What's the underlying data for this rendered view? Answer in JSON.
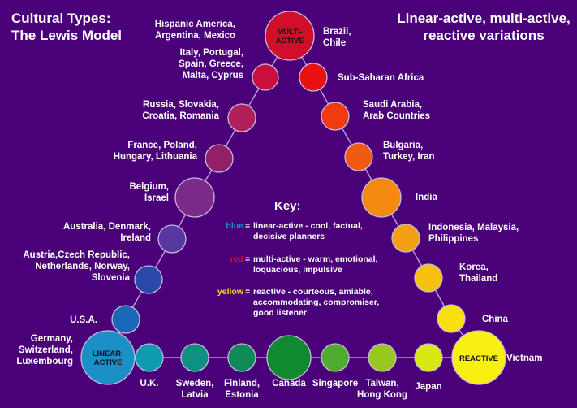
{
  "title_left": [
    "Cultural Types:",
    "The Lewis Model"
  ],
  "title_right": [
    "Linear-active, multi-active,",
    "reactive variations"
  ],
  "key": {
    "heading": "Key:",
    "entries": [
      {
        "word": "blue",
        "color": "#1a8fd0",
        "lines": [
          "linear-active - cool, factual,",
          "decisive planners"
        ]
      },
      {
        "word": "red",
        "color": "#e0102a",
        "lines": [
          "multi-active - warm, emotional,",
          "loquacious, impulsive"
        ]
      },
      {
        "word": "yellow",
        "color": "#f0e000",
        "lines": [
          "reactive - courteous, amiable,",
          "accommodating, compromiser,",
          "good listener"
        ]
      }
    ]
  },
  "nodes": [
    {
      "id": "multi",
      "inner": [
        "MULTI-",
        "ACTIVE"
      ],
      "color": "#d0102a",
      "label": [
        "Hispanic America,",
        "Argentina, Mexico"
      ]
    },
    {
      "id": "italy",
      "color": "#c8103e",
      "label": [
        "Italy, Portugal,",
        "Spain, Greece,",
        "Malta, Cyprus"
      ]
    },
    {
      "id": "russia",
      "color": "#b0205a",
      "label": [
        "Russia, Slovakia,",
        "Croatia, Romania"
      ]
    },
    {
      "id": "france",
      "color": "#902068",
      "label": [
        "France, Poland,",
        "Hungary, Lithuania"
      ]
    },
    {
      "id": "belgium",
      "color": "#7a2a88",
      "label": [
        "Belgium,",
        "Israel"
      ]
    },
    {
      "id": "australia",
      "color": "#58389e",
      "label": [
        "Australia, Denmark,",
        "Ireland"
      ]
    },
    {
      "id": "austria",
      "color": "#2a48a8",
      "label": [
        "Austria,Czech Republic,",
        "Netherlands, Norway,",
        "Slovenia"
      ]
    },
    {
      "id": "usa",
      "color": "#1a68b8",
      "label": [
        "U.S.A."
      ]
    },
    {
      "id": "linear",
      "inner": [
        "LINEAR-",
        "ACTIVE"
      ],
      "color": "#1a8fc8",
      "label": [
        "Germany,",
        "Switzerland,",
        "Luxembourg"
      ]
    },
    {
      "id": "uk",
      "color": "#109cb0",
      "label": [
        "U.K."
      ]
    },
    {
      "id": "sweden",
      "color": "#109080",
      "label": [
        "Sweden,",
        "Latvia"
      ]
    },
    {
      "id": "finland",
      "color": "#108a58",
      "label": [
        "Finland,",
        "Estonia"
      ]
    },
    {
      "id": "canada",
      "color": "#108a30",
      "label": [
        "Canada"
      ]
    },
    {
      "id": "singapore",
      "color": "#50ac30",
      "label": [
        "Singapore"
      ]
    },
    {
      "id": "taiwan",
      "color": "#98c820",
      "label": [
        "Taiwan,",
        "Hong Kong"
      ]
    },
    {
      "id": "japan",
      "color": "#d8e810",
      "label": [
        "Japan"
      ]
    },
    {
      "id": "reactive",
      "inner": [
        "REACTIVE"
      ],
      "color": "#f8f010",
      "label": [
        "Vietnam"
      ]
    },
    {
      "id": "china",
      "color": "#f8e010",
      "label": [
        "China"
      ]
    },
    {
      "id": "korea",
      "color": "#f5c010",
      "label": [
        "Korea,",
        "Thailand"
      ]
    },
    {
      "id": "indonesia",
      "color": "#f5a010",
      "label": [
        "Indonesia, Malaysia,",
        "Philippines"
      ]
    },
    {
      "id": "india",
      "color": "#f58a10",
      "label": [
        "India"
      ]
    },
    {
      "id": "bulgaria",
      "color": "#f05a10",
      "label": [
        "Bulgaria,",
        "Turkey, Iran"
      ]
    },
    {
      "id": "saudi",
      "color": "#f03a10",
      "label": [
        "Saudi Arabia,",
        "Arab Countries"
      ]
    },
    {
      "id": "subsahara",
      "color": "#e81010",
      "label": [
        "Sub-Saharan Africa"
      ]
    }
  ],
  "extra_label": [
    "Brazil,",
    "Chile"
  ]
}
